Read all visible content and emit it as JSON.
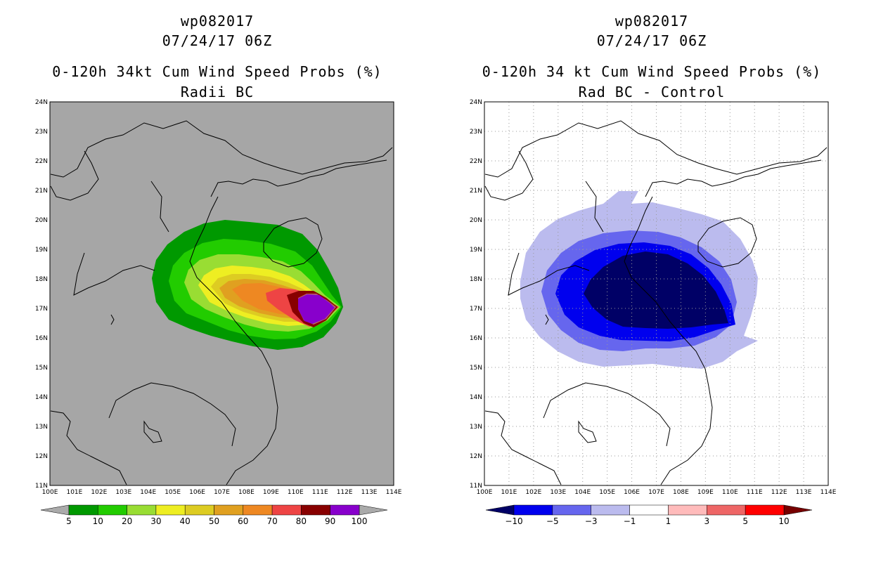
{
  "left": {
    "storm_id": "wp082017",
    "datetime": "07/24/17 06Z",
    "product": "0-120h 34kt Cum Wind Speed Probs (%)",
    "subtitle": "Radii BC",
    "colorbar": {
      "labels": [
        "5",
        "10",
        "20",
        "30",
        "40",
        "50",
        "60",
        "70",
        "80",
        "90",
        "100"
      ],
      "colors": [
        "#009900",
        "#22cc00",
        "#99dd33",
        "#eeee22",
        "#ddcc22",
        "#e0a020",
        "#ee8822",
        "#ee4444",
        "#880000",
        "#8800cc"
      ],
      "under_color": "#aaaaaa",
      "over_color": "#aaaaaa"
    },
    "background_color": "#a6a6a6"
  },
  "right": {
    "storm_id": "wp082017",
    "datetime": "07/24/17 06Z",
    "product": "0-120h 34 kt Cum Wind Speed Probs (%)",
    "subtitle": "Rad BC - Control",
    "colorbar": {
      "labels": [
        "−10",
        "−5",
        "−3",
        "−1",
        "1",
        "3",
        "5",
        "10"
      ],
      "colors": [
        "#0000ee",
        "#6666ee",
        "#bbbbee",
        "#ffffff",
        "#ffbbbb",
        "#ee6666",
        "#ff0000"
      ],
      "under_color": "#000066",
      "over_color": "#770000"
    },
    "background_color": "#ffffff"
  },
  "axes": {
    "lat_labels": [
      "24N",
      "23N",
      "22N",
      "21N",
      "20N",
      "19N",
      "18N",
      "17N",
      "16N",
      "15N",
      "14N",
      "13N",
      "12N",
      "11N"
    ],
    "lon_labels": [
      "100E",
      "101E",
      "102E",
      "103E",
      "104E",
      "105E",
      "106E",
      "107E",
      "108E",
      "109E",
      "110E",
      "111E",
      "112E",
      "113E",
      "114E"
    ]
  }
}
